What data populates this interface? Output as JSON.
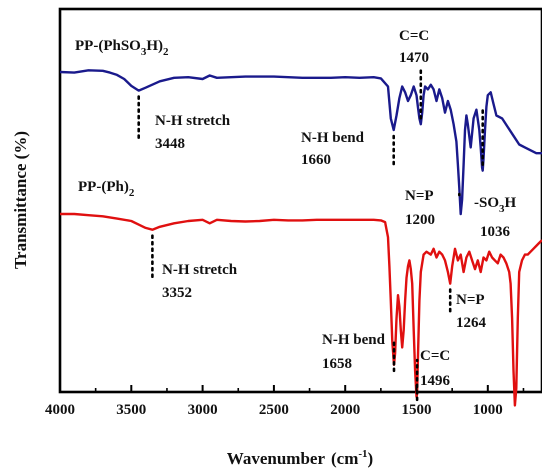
{
  "chart_data": {
    "type": "line",
    "title": "",
    "xlabel": "Wavenumber",
    "xlabel_unit": "(cm",
    "xlabel_unit_sup": "-1",
    "xlabel_unit_close": ")",
    "ylabel": "Transmittance (%)",
    "xlim": [
      4000,
      620
    ],
    "x_reversed": true,
    "y_ticks_shown": false,
    "x_ticks": [
      4000,
      3500,
      3000,
      2500,
      2000,
      1500,
      1000
    ],
    "x_tick_labels": [
      "4000",
      "3500",
      "3000",
      "2500",
      "2000",
      "1500",
      "1000"
    ],
    "grid": false,
    "series": [
      {
        "label_main": "PP-(PhSO",
        "label_sub": "3",
        "label_mid": "H)",
        "label_sub2": "2",
        "color": "#1a1a8c",
        "x": [
          4000,
          3900,
          3800,
          3700,
          3650,
          3600,
          3550,
          3500,
          3448,
          3400,
          3300,
          3200,
          3100,
          3000,
          2950,
          2900,
          2800,
          2700,
          2600,
          2500,
          2400,
          2300,
          2200,
          2100,
          2000,
          1900,
          1800,
          1750,
          1700,
          1680,
          1660,
          1640,
          1620,
          1600,
          1580,
          1560,
          1540,
          1520,
          1500,
          1490,
          1480,
          1470,
          1460,
          1450,
          1440,
          1420,
          1400,
          1380,
          1360,
          1340,
          1320,
          1300,
          1280,
          1260,
          1240,
          1220,
          1210,
          1200,
          1190,
          1180,
          1170,
          1160,
          1150,
          1140,
          1120,
          1100,
          1080,
          1060,
          1050,
          1040,
          1036,
          1030,
          1020,
          1010,
          1000,
          980,
          960,
          940,
          900,
          860,
          820,
          780,
          740,
          700,
          660,
          620
        ],
        "y": [
          0.0,
          0.1,
          -0.3,
          -0.2,
          0.1,
          0.5,
          1.2,
          2.4,
          3.2,
          2.7,
          1.6,
          1.0,
          0.9,
          1.2,
          0.6,
          1.0,
          0.9,
          0.8,
          0.8,
          0.8,
          0.9,
          1.0,
          1.0,
          1.0,
          0.9,
          1.0,
          0.9,
          1.1,
          2.5,
          8.0,
          10.0,
          7.5,
          4.5,
          2.5,
          3.5,
          5.0,
          4.0,
          2.5,
          4.0,
          6.0,
          8.0,
          9.0,
          7.0,
          4.0,
          2.5,
          3.0,
          2.2,
          3.0,
          5.0,
          3.0,
          4.5,
          7.0,
          5.0,
          6.5,
          9.0,
          12.0,
          16.0,
          20.0,
          24.5,
          22.0,
          16.0,
          10.0,
          7.5,
          9.0,
          13.0,
          8.0,
          6.5,
          10.0,
          13.0,
          16.5,
          17.0,
          15.0,
          10.0,
          6.0,
          4.0,
          3.5,
          5.5,
          7.5,
          8.0,
          9.5,
          11.0,
          12.5,
          13.0,
          13.5,
          14.0,
          14.0
        ]
      },
      {
        "label_main": "PP-(Ph)",
        "label_sub": "2",
        "color": "#e01010",
        "x": [
          4000,
          3900,
          3800,
          3700,
          3600,
          3500,
          3450,
          3400,
          3352,
          3300,
          3200,
          3100,
          3000,
          2950,
          2900,
          2800,
          2700,
          2600,
          2500,
          2400,
          2300,
          2200,
          2100,
          2000,
          1900,
          1800,
          1750,
          1720,
          1700,
          1690,
          1680,
          1670,
          1658,
          1650,
          1640,
          1630,
          1620,
          1610,
          1600,
          1590,
          1580,
          1570,
          1560,
          1550,
          1540,
          1530,
          1520,
          1510,
          1500,
          1496,
          1490,
          1480,
          1470,
          1450,
          1430,
          1400,
          1380,
          1360,
          1340,
          1320,
          1300,
          1280,
          1264,
          1250,
          1230,
          1210,
          1190,
          1170,
          1150,
          1130,
          1110,
          1090,
          1070,
          1050,
          1030,
          1010,
          990,
          970,
          950,
          930,
          910,
          890,
          870,
          850,
          840,
          830,
          820,
          810,
          800,
          790,
          780,
          760,
          740,
          720,
          700,
          680,
          660,
          640,
          620
        ],
        "y": [
          0.0,
          0.0,
          0.2,
          0.4,
          0.8,
          1.2,
          1.8,
          2.4,
          2.7,
          2.2,
          1.6,
          1.2,
          1.0,
          1.6,
          1.0,
          1.2,
          1.3,
          1.2,
          1.0,
          1.1,
          1.1,
          1.0,
          1.0,
          1.0,
          1.0,
          1.0,
          1.1,
          1.4,
          4.0,
          9.0,
          15.0,
          22.0,
          26.0,
          24.0,
          18.0,
          14.0,
          16.0,
          20.0,
          23.0,
          20.0,
          15.0,
          11.0,
          9.0,
          8.0,
          9.5,
          12.0,
          20.0,
          27.0,
          31.5,
          31.0,
          25.0,
          15.0,
          10.0,
          7.0,
          6.5,
          7.0,
          6.0,
          7.5,
          6.5,
          7.0,
          8.0,
          10.0,
          12.0,
          9.0,
          6.0,
          8.0,
          7.0,
          10.0,
          7.5,
          6.5,
          8.0,
          9.5,
          8.0,
          10.0,
          7.5,
          8.0,
          6.5,
          7.5,
          8.0,
          8.5,
          7.0,
          7.5,
          8.5,
          10.0,
          12.0,
          18.0,
          27.0,
          33.0,
          30.0,
          18.0,
          10.0,
          8.0,
          7.0,
          7.0,
          6.5,
          6.0,
          5.5,
          5.0,
          4.5
        ]
      }
    ],
    "annotations": [
      {
        "lines": [
          "C=C",
          "1470"
        ],
        "series": 0,
        "x": 1470
      },
      {
        "lines": [
          "N-H stretch",
          "3448"
        ],
        "series": 0,
        "x": 3448
      },
      {
        "lines": [
          "N-H bend",
          "1660"
        ],
        "series": 0,
        "x": 1660
      },
      {
        "lines": [
          "N=P",
          "1200"
        ],
        "series": 0,
        "x": 1200
      },
      {
        "lines": [
          "-SO",
          "1036"
        ],
        "series": 0,
        "x": 1036,
        "sub": "3",
        "after": "H"
      },
      {
        "lines": [
          "N-H stretch",
          "3352"
        ],
        "series": 1,
        "x": 3352
      },
      {
        "lines": [
          "N=P",
          "1264"
        ],
        "series": 1,
        "x": 1264
      },
      {
        "lines": [
          "N-H bend",
          "1658"
        ],
        "series": 1,
        "x": 1658
      },
      {
        "lines": [
          "C=C",
          "1496"
        ],
        "series": 1,
        "x": 1496
      }
    ]
  }
}
